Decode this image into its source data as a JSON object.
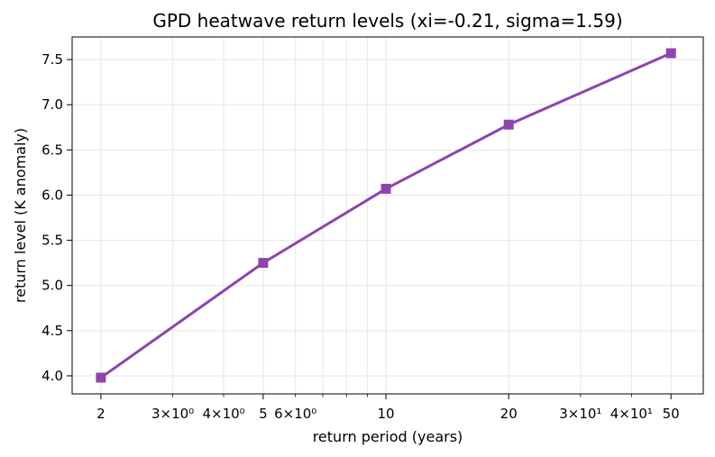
{
  "chart_data": {
    "type": "line",
    "title": "GPD heatwave return levels (xi=-0.21, sigma=1.59)",
    "xlabel": "return period (years)",
    "ylabel": "return level (K anomaly)",
    "x_scale": "log",
    "xlim": [
      1.7,
      60
    ],
    "ylim": [
      3.8,
      7.75
    ],
    "grid": true,
    "color": "#8e44ad",
    "marker": "square",
    "x_major_ticks": [
      {
        "value": 2,
        "label": "2"
      },
      {
        "value": 5,
        "label": "5"
      },
      {
        "value": 10,
        "label": "10"
      },
      {
        "value": 20,
        "label": "20"
      },
      {
        "value": 50,
        "label": "50"
      }
    ],
    "x_minor_ticks": [
      {
        "value": 3,
        "label": "3×10⁰"
      },
      {
        "value": 4,
        "label": "4×10⁰"
      },
      {
        "value": 6,
        "label": "6×10⁰"
      },
      {
        "value": 30,
        "label": "3×10¹"
      },
      {
        "value": 40,
        "label": "4×10¹"
      }
    ],
    "x_unlabeled_minor_ticks": [
      7,
      8,
      9
    ],
    "y_ticks": [
      {
        "value": 4.0,
        "label": "4.0"
      },
      {
        "value": 4.5,
        "label": "4.5"
      },
      {
        "value": 5.0,
        "label": "5.0"
      },
      {
        "value": 5.5,
        "label": "5.5"
      },
      {
        "value": 6.0,
        "label": "6.0"
      },
      {
        "value": 6.5,
        "label": "6.5"
      },
      {
        "value": 7.0,
        "label": "7.0"
      },
      {
        "value": 7.5,
        "label": "7.5"
      }
    ],
    "x": [
      2,
      5,
      10,
      20,
      50
    ],
    "series": [
      {
        "values": [
          3.98,
          5.25,
          6.07,
          6.78,
          7.57
        ]
      }
    ]
  }
}
